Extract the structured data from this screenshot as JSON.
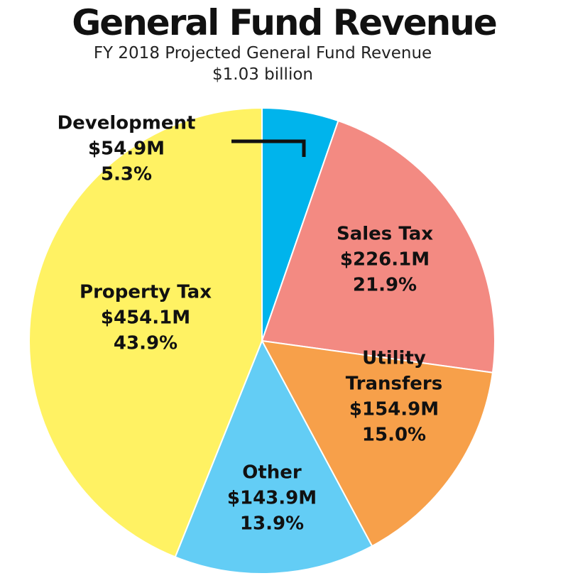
{
  "header": {
    "title": "General Fund Revenue",
    "subtitle_line1": "FY 2018 Projected General Fund Revenue",
    "subtitle_line2": "$1.03 billion"
  },
  "chart_data": {
    "type": "pie",
    "title": "General Fund Revenue",
    "subtitle": "FY 2018 Projected General Fund Revenue $1.03 billion",
    "start": "12 o'clock, clockwise",
    "slices": [
      {
        "name": "Development",
        "value_label": "$54.9M",
        "percent_label": "5.3%",
        "value": 54.9,
        "percent": 5.3,
        "color": "#00b4ec"
      },
      {
        "name": "Sales Tax",
        "value_label": "$226.1M",
        "percent_label": "21.9%",
        "value": 226.1,
        "percent": 21.9,
        "color": "#f38a82"
      },
      {
        "name": "Utility Transfers",
        "value_label": "$154.9M",
        "percent_label": "15.0%",
        "value": 154.9,
        "percent": 15.0,
        "color": "#f7a04a"
      },
      {
        "name": "Other",
        "value_label": "$143.9M",
        "percent_label": "13.9%",
        "value": 143.9,
        "percent": 13.9,
        "color": "#63cdf5"
      },
      {
        "name": "Property Tax",
        "value_label": "$454.1M",
        "percent_label": "43.9%",
        "value": 454.1,
        "percent": 43.9,
        "color": "#fff263"
      }
    ]
  }
}
